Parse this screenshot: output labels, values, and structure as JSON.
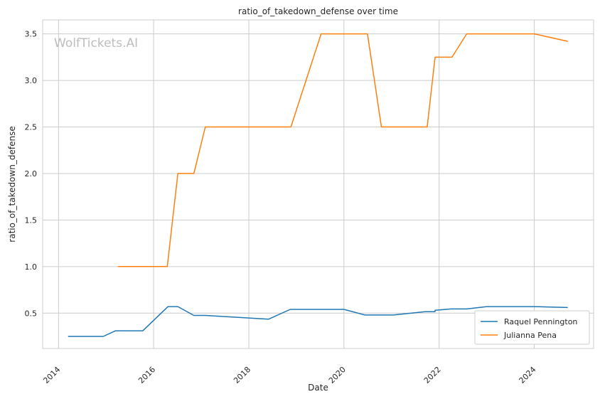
{
  "chart_data": {
    "type": "line",
    "title": "ratio_of_takedown_defense over time",
    "xlabel": "Date",
    "ylabel": "ratio_of_takedown_defense",
    "watermark": "WolfTickets.AI",
    "xlim": [
      "2013-09-01",
      "2025-04-01"
    ],
    "ylim": [
      0.12,
      3.65
    ],
    "x_ticks": [
      "2014",
      "2016",
      "2018",
      "2020",
      "2022",
      "2024"
    ],
    "y_ticks": [
      "0.5",
      "1.0",
      "1.5",
      "2.0",
      "2.5",
      "3.0",
      "3.5"
    ],
    "grid": true,
    "legend_position": "lower-right",
    "series": [
      {
        "name": "Raquel Pennington",
        "color": "#1f77b4",
        "points": [
          [
            "2014-03-15",
            0.25
          ],
          [
            "2014-12-10",
            0.25
          ],
          [
            "2015-03-15",
            0.31
          ],
          [
            "2015-10-10",
            0.31
          ],
          [
            "2016-04-20",
            0.57
          ],
          [
            "2016-07-05",
            0.57
          ],
          [
            "2016-11-05",
            0.475
          ],
          [
            "2017-02-01",
            0.475
          ],
          [
            "2018-06-01",
            0.435
          ],
          [
            "2018-11-15",
            0.54
          ],
          [
            "2019-06-01",
            0.54
          ],
          [
            "2020-01-01",
            0.54
          ],
          [
            "2020-06-10",
            0.48
          ],
          [
            "2021-01-15",
            0.48
          ],
          [
            "2021-09-15",
            0.515
          ],
          [
            "2021-11-30",
            0.515
          ],
          [
            "2021-12-01",
            0.53
          ],
          [
            "2022-04-01",
            0.545
          ],
          [
            "2022-08-01",
            0.545
          ],
          [
            "2023-01-01",
            0.57
          ],
          [
            "2024-01-01",
            0.57
          ],
          [
            "2024-09-15",
            0.56
          ]
        ]
      },
      {
        "name": "Julianna Pena",
        "color": "#ff7f0e",
        "points": [
          [
            "2015-04-01",
            1.0
          ],
          [
            "2016-04-15",
            1.0
          ],
          [
            "2016-07-05",
            2.0
          ],
          [
            "2016-11-05",
            2.0
          ],
          [
            "2017-02-01",
            2.5
          ],
          [
            "2018-11-20",
            2.5
          ],
          [
            "2019-07-10",
            3.5
          ],
          [
            "2020-06-30",
            3.5
          ],
          [
            "2020-10-15",
            2.5
          ],
          [
            "2021-10-01",
            2.5
          ],
          [
            "2021-12-01",
            3.25
          ],
          [
            "2022-04-10",
            3.25
          ],
          [
            "2022-08-01",
            3.5
          ],
          [
            "2024-01-01",
            3.5
          ],
          [
            "2024-09-15",
            3.42
          ]
        ]
      }
    ]
  }
}
